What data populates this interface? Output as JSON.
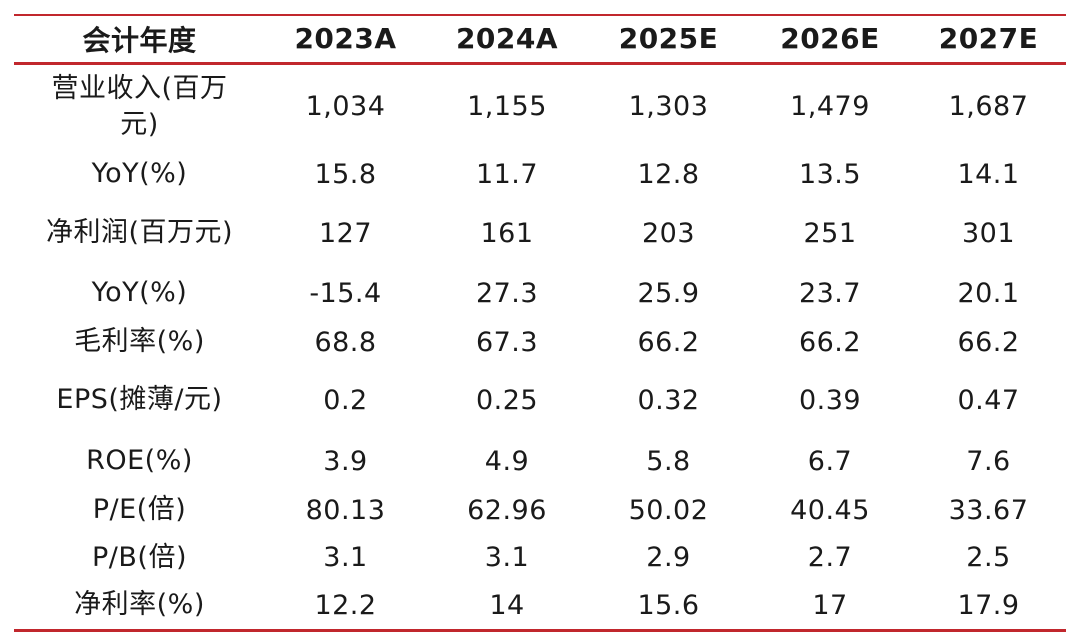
{
  "table": {
    "headers": [
      "会计年度",
      "2023A",
      "2024A",
      "2025E",
      "2026E",
      "2027E"
    ],
    "rows": [
      {
        "label": "营业收入(百万元)",
        "values": [
          "1,034",
          "1,155",
          "1,303",
          "1,479",
          "1,687"
        ]
      },
      {
        "label": "YoY(%)",
        "values": [
          "15.8",
          "11.7",
          "12.8",
          "13.5",
          "14.1"
        ]
      },
      {
        "label": "净利润(百万元)",
        "values": [
          "127",
          "161",
          "203",
          "251",
          "301"
        ]
      },
      {
        "label": "YoY(%)",
        "values": [
          "-15.4",
          "27.3",
          "25.9",
          "23.7",
          "20.1"
        ]
      },
      {
        "label": "毛利率(%)",
        "values": [
          "68.8",
          "67.3",
          "66.2",
          "66.2",
          "66.2"
        ]
      },
      {
        "label": "EPS(摊薄/元)",
        "values": [
          "0.2",
          "0.25",
          "0.32",
          "0.39",
          "0.47"
        ]
      },
      {
        "label": "ROE(%)",
        "values": [
          "3.9",
          "4.9",
          "5.8",
          "6.7",
          "7.6"
        ]
      },
      {
        "label": "P/E(倍)",
        "values": [
          "80.13",
          "62.96",
          "50.02",
          "40.45",
          "33.67"
        ]
      },
      {
        "label": "P/B(倍)",
        "values": [
          "3.1",
          "3.1",
          "2.9",
          "2.7",
          "2.5"
        ]
      },
      {
        "label": "净利率(%)",
        "values": [
          "12.2",
          "14",
          "15.6",
          "17",
          "17.9"
        ]
      }
    ]
  },
  "colors": {
    "rule": "#c1272d",
    "text": "#1a1a1a"
  }
}
